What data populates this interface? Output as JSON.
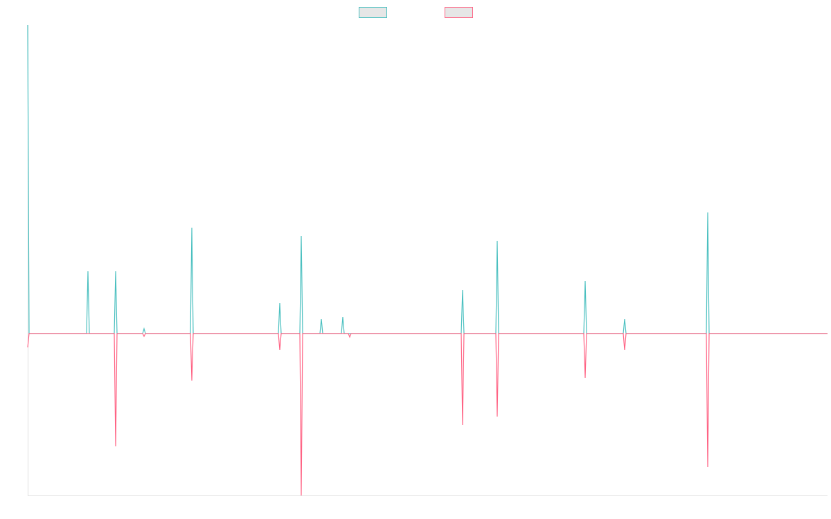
{
  "chart_data": {
    "type": "line",
    "x": [
      0,
      2,
      85,
      87,
      89,
      125,
      127,
      129,
      166,
      168,
      170,
      235,
      237,
      239,
      362,
      364,
      366,
      393,
      395,
      397,
      422,
      424,
      426,
      453,
      455,
      457,
      463,
      465,
      467,
      626,
      628,
      630,
      676,
      678,
      680,
      803,
      805,
      807,
      860,
      862,
      864,
      980,
      982,
      984,
      1155
    ],
    "series": [
      {
        "color": "#4bc0c0",
        "values": [
          446,
          0,
          0,
          90,
          0,
          0,
          90,
          0,
          0,
          7,
          0,
          0,
          153,
          0,
          0,
          44,
          0,
          0,
          141,
          0,
          0,
          21,
          0,
          0,
          24,
          0,
          0,
          0,
          0,
          0,
          63,
          0,
          0,
          134,
          0,
          0,
          76,
          0,
          0,
          21,
          0,
          0,
          175,
          0,
          0
        ]
      },
      {
        "color": "#ff6384",
        "values": [
          -20,
          0,
          0,
          0,
          0,
          0,
          -163,
          0,
          0,
          -4,
          0,
          0,
          -68,
          0,
          0,
          -24,
          0,
          0,
          -234,
          0,
          0,
          0,
          0,
          0,
          0,
          0,
          0,
          -5,
          0,
          0,
          -132,
          0,
          0,
          -120,
          0,
          0,
          -64,
          0,
          0,
          -24,
          0,
          0,
          -193,
          0,
          0
        ]
      }
    ],
    "xlim": [
      0,
      1155
    ],
    "ylim": [
      -234,
      446
    ],
    "legend": "top"
  }
}
